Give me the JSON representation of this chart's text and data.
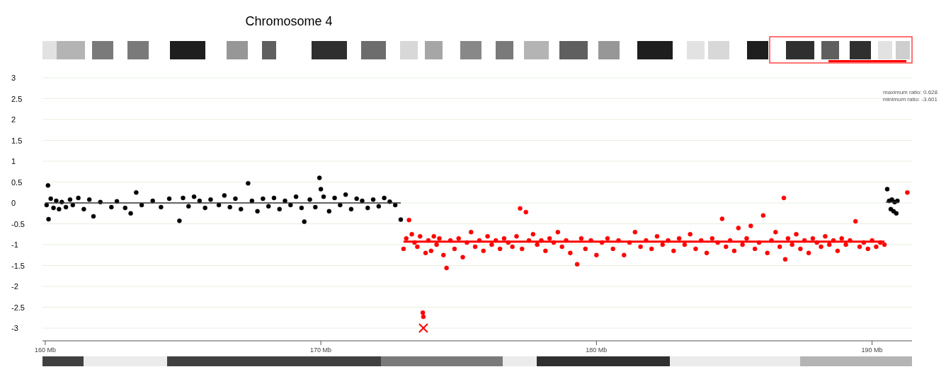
{
  "chart_data": {
    "type": "scatter",
    "title": "Chromosome 4",
    "marker": "circle",
    "grid": "y",
    "xlim": [
      159.9,
      191.45
    ],
    "xticks": [
      {
        "value": 160,
        "label": "160 Mb"
      },
      {
        "value": 170,
        "label": "170 Mb"
      },
      {
        "value": 180,
        "label": "180 Mb"
      },
      {
        "value": 190,
        "label": "190 Mb"
      }
    ],
    "ylim": [
      -3,
      3
    ],
    "yticks": [
      3,
      2.5,
      2,
      1.5,
      1,
      0.5,
      0,
      -0.5,
      -1,
      -1.5,
      -2,
      -2.5,
      -3
    ],
    "annotations": [
      "maximum ratio: 0.628",
      "minimum ratio: -3.601"
    ],
    "series": [
      {
        "color": "#000000",
        "x": [
          160.05,
          160.1,
          160.12,
          160.2,
          160.3,
          160.4,
          160.5,
          160.6,
          160.75,
          160.9,
          161.0,
          161.2,
          161.4,
          161.6,
          161.75,
          162.0,
          162.4,
          162.6,
          162.9,
          163.1,
          163.3,
          163.5,
          163.9,
          164.2,
          164.5,
          164.87,
          165.0,
          165.2,
          165.4,
          165.6,
          165.8,
          166.0,
          166.3,
          166.5,
          166.7,
          166.9,
          167.1,
          167.36,
          167.5,
          167.7,
          167.9,
          168.1,
          168.3,
          168.5,
          168.7,
          168.9,
          169.1,
          169.3,
          169.4,
          169.6,
          169.8,
          169.95,
          170.0,
          170.1,
          170.3,
          170.5,
          170.7,
          170.9,
          171.1,
          171.3,
          171.5,
          171.7,
          171.9,
          172.1,
          172.3,
          172.5,
          172.7,
          172.9,
          190.55,
          190.62,
          190.68,
          190.72,
          190.78,
          190.82,
          190.88,
          190.92
        ],
        "values": [
          -0.05,
          0.42,
          -0.39,
          0.1,
          -0.12,
          0.05,
          -0.15,
          0.02,
          -0.1,
          0.08,
          -0.05,
          0.12,
          -0.15,
          0.08,
          -0.32,
          0.02,
          -0.1,
          0.04,
          -0.12,
          -0.25,
          0.25,
          -0.05,
          0.05,
          -0.1,
          0.1,
          -0.43,
          0.12,
          -0.08,
          0.15,
          0.05,
          -0.12,
          0.08,
          -0.05,
          0.18,
          -0.1,
          0.1,
          -0.15,
          0.47,
          0.05,
          -0.2,
          0.1,
          -0.08,
          0.12,
          -0.15,
          0.05,
          -0.05,
          0.15,
          -0.12,
          -0.45,
          0.08,
          -0.1,
          0.6,
          0.33,
          0.15,
          -0.2,
          0.12,
          -0.05,
          0.2,
          -0.15,
          0.1,
          0.05,
          -0.12,
          0.08,
          -0.08,
          0.12,
          0.03,
          -0.05,
          -0.4,
          0.33,
          0.05,
          -0.15,
          0.08,
          -0.2,
          0.02,
          -0.25,
          0.05
        ]
      },
      {
        "color": "#ff0000",
        "x": [
          173.0,
          173.1,
          173.2,
          173.3,
          173.4,
          173.5,
          173.6,
          173.7,
          173.72,
          173.8,
          173.9,
          174.0,
          174.1,
          174.2,
          174.3,
          174.45,
          174.56,
          174.7,
          174.85,
          175.0,
          175.15,
          175.3,
          175.45,
          175.6,
          175.75,
          175.9,
          176.05,
          176.2,
          176.35,
          176.5,
          176.65,
          176.8,
          176.95,
          177.1,
          177.23,
          177.3,
          177.44,
          177.55,
          177.7,
          177.85,
          178.0,
          178.15,
          178.3,
          178.45,
          178.6,
          178.75,
          178.9,
          179.05,
          179.3,
          179.45,
          179.6,
          179.8,
          180.0,
          180.2,
          180.4,
          180.6,
          180.8,
          181.0,
          181.2,
          181.4,
          181.6,
          181.8,
          182.0,
          182.2,
          182.4,
          182.6,
          182.8,
          183.0,
          183.2,
          183.4,
          183.6,
          183.8,
          184.0,
          184.2,
          184.4,
          184.56,
          184.7,
          184.85,
          185.0,
          185.15,
          185.3,
          185.45,
          185.6,
          185.75,
          185.9,
          186.05,
          186.2,
          186.35,
          186.5,
          186.65,
          186.8,
          186.85,
          186.95,
          187.1,
          187.25,
          187.4,
          187.55,
          187.7,
          187.85,
          188.0,
          188.15,
          188.3,
          188.45,
          188.6,
          188.75,
          188.9,
          189.05,
          189.2,
          189.4,
          189.55,
          189.7,
          189.85,
          190.0,
          190.15,
          190.3,
          190.45,
          191.28
        ],
        "values": [
          -1.1,
          -0.85,
          -0.41,
          -0.75,
          -0.95,
          -1.05,
          -0.8,
          -2.63,
          -2.73,
          -1.2,
          -0.9,
          -1.15,
          -0.8,
          -1.0,
          -0.85,
          -1.25,
          -1.56,
          -0.9,
          -1.1,
          -0.85,
          -1.3,
          -0.95,
          -0.7,
          -1.05,
          -0.9,
          -1.15,
          -0.8,
          -1.0,
          -0.9,
          -1.1,
          -0.85,
          -0.95,
          -1.05,
          -0.8,
          -0.13,
          -1.1,
          -0.22,
          -0.9,
          -0.75,
          -1.0,
          -0.9,
          -1.15,
          -0.85,
          -0.95,
          -0.7,
          -1.05,
          -0.9,
          -1.2,
          -1.47,
          -0.85,
          -1.1,
          -0.9,
          -1.25,
          -0.95,
          -0.85,
          -1.1,
          -0.9,
          -1.25,
          -0.95,
          -0.7,
          -1.05,
          -0.9,
          -1.1,
          -0.8,
          -1.0,
          -0.9,
          -1.15,
          -0.85,
          -1.0,
          -0.75,
          -1.1,
          -0.9,
          -1.2,
          -0.85,
          -0.95,
          -0.38,
          -1.05,
          -0.9,
          -1.15,
          -0.6,
          -1.0,
          -0.85,
          -0.55,
          -1.1,
          -0.95,
          -0.3,
          -1.2,
          -0.9,
          -0.7,
          -1.05,
          0.12,
          -1.35,
          -0.85,
          -1.0,
          -0.75,
          -1.1,
          -0.9,
          -1.2,
          -0.85,
          -0.95,
          -1.05,
          -0.8,
          -1.0,
          -0.9,
          -1.15,
          -0.85,
          -1.0,
          -0.9,
          -0.44,
          -1.05,
          -0.95,
          -1.1,
          -0.9,
          -1.05,
          -0.95,
          -1.0,
          0.25
        ]
      },
      {
        "type": "line",
        "marker": "none",
        "color": "#333333",
        "x": [
          160,
          172.9
        ],
        "values": [
          0,
          0
        ]
      },
      {
        "type": "line",
        "marker": "none",
        "color": "#ff0000",
        "x": [
          173.0,
          190.45
        ],
        "values": [
          -0.93,
          -0.93
        ]
      },
      {
        "type": "line",
        "marker": "none",
        "color": "#333333",
        "x": [
          190.5,
          190.95
        ],
        "values": [
          0.02,
          0.02
        ]
      },
      {
        "marker": "cross",
        "color": "#ff0000",
        "x": [
          173.72
        ],
        "values": [
          -3.0
        ]
      }
    ]
  }
}
